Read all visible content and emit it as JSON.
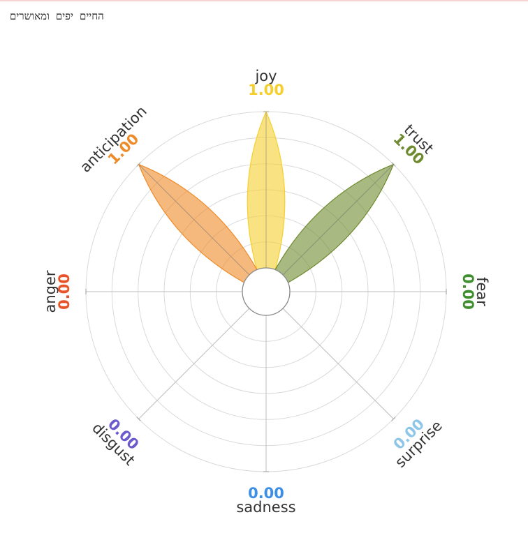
{
  "caption": "החיים יפים ומאושרים",
  "colors": {
    "grid": "#d9d9d9",
    "spoke": "#bdbdbd",
    "label": "#333333",
    "center_stroke": "#888888"
  },
  "chart_data": {
    "type": "radar",
    "title": "",
    "range": [
      0,
      1
    ],
    "rings": 6,
    "grid": true,
    "legend": "none",
    "axes": [
      {
        "name": "joy",
        "value": 1.0,
        "label": "1.00",
        "color": "#f5cf2e"
      },
      {
        "name": "trust",
        "value": 1.0,
        "label": "1.00",
        "color": "#6e8a2e"
      },
      {
        "name": "fear",
        "value": 0.0,
        "label": "0.00",
        "color": "#3f8f2e"
      },
      {
        "name": "surprise",
        "value": 0.0,
        "label": "0.00",
        "color": "#8ec6e8"
      },
      {
        "name": "sadness",
        "value": 0.0,
        "label": "0.00",
        "color": "#3b8fe6"
      },
      {
        "name": "disgust",
        "value": 0.0,
        "label": "0.00",
        "color": "#6a5acd"
      },
      {
        "name": "anger",
        "value": 0.0,
        "label": "0.00",
        "color": "#e8542a"
      },
      {
        "name": "anticipation",
        "value": 1.0,
        "label": "1.00",
        "color": "#ee8a28"
      }
    ]
  }
}
